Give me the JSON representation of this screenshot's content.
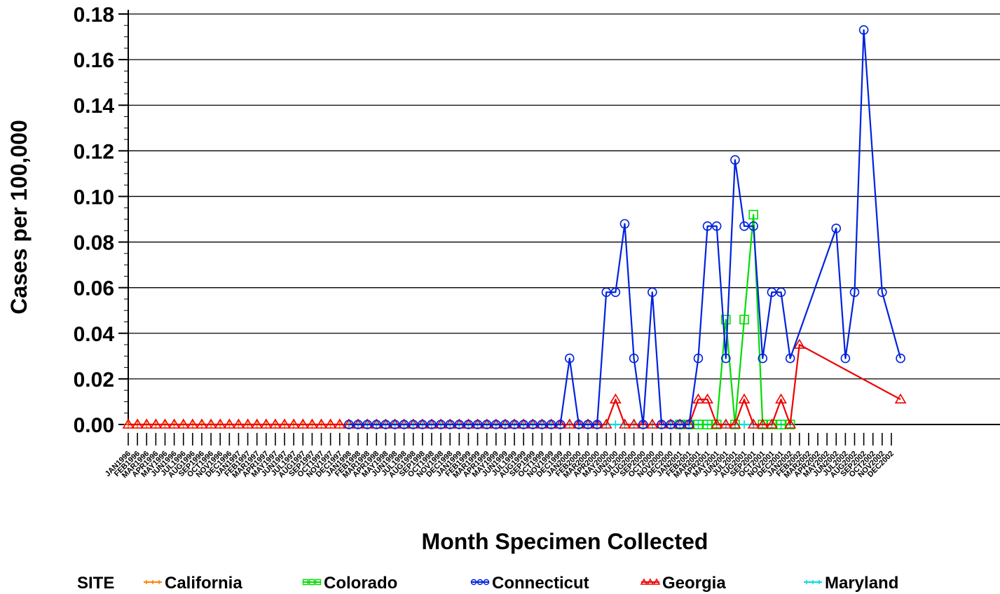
{
  "chart_data": {
    "type": "line",
    "xlabel": "Month Specimen Collected",
    "ylabel": "Cases per 100,000",
    "ylim": [
      0,
      0.18
    ],
    "yticks": [
      "0.00",
      "0.02",
      "0.04",
      "0.06",
      "0.08",
      "0.10",
      "0.12",
      "0.14",
      "0.16",
      "0.18"
    ],
    "grid": "horizontal",
    "legend_title": "SITE",
    "legend_position": "bottom",
    "x_categories": [
      "JAN1996",
      "FEB1996",
      "MAR1996",
      "APR1996",
      "MAY1996",
      "JUN1996",
      "JUL1996",
      "AUG1996",
      "SEP1996",
      "OCT1996",
      "NOV1996",
      "DEC1996",
      "JAN1997",
      "FEB1997",
      "MAR1997",
      "APR1997",
      "MAY1997",
      "JUN1997",
      "JUL1997",
      "AUG1997",
      "SEP1997",
      "OCT1997",
      "NOV1997",
      "DEC1997",
      "JAN1998",
      "FEB1998",
      "MAR1998",
      "APR1998",
      "MAY1998",
      "JUN1998",
      "JUL1998",
      "AUG1998",
      "SEP1998",
      "OCT1998",
      "NOV1998",
      "DEC1998",
      "JAN1999",
      "FEB1999",
      "MAR1999",
      "APR1999",
      "MAY1999",
      "JUN1999",
      "JUL1999",
      "AUG1999",
      "SEP1999",
      "OCT1999",
      "NOV1999",
      "DEC1999",
      "JAN2000",
      "FEB2000",
      "MAR2000",
      "APR2000",
      "MAY2000",
      "JUN2000",
      "JUL2000",
      "AUG2000",
      "SEP2000",
      "OCT2000",
      "NOV2000",
      "DEC2000",
      "JAN2001",
      "FEB2001",
      "MAR2001",
      "APR2001",
      "MAY2001",
      "JUN2001",
      "JUL2001",
      "AUG2001",
      "SEP2001",
      "OCT2001",
      "NOV2001",
      "DEC2001",
      "JAN2002",
      "FEB2002",
      "MAR2002",
      "APR2002",
      "MAY2002",
      "JUN2002",
      "JUL2002",
      "AUG2002",
      "SEP2002",
      "OCT2002",
      "NOV2002",
      "DEC2002"
    ],
    "series": [
      {
        "name": "California",
        "color": "#ff8000",
        "marker": "plus",
        "points": [
          [
            0,
            0
          ],
          [
            1,
            0
          ],
          [
            2,
            0
          ],
          [
            3,
            0
          ],
          [
            4,
            0
          ],
          [
            5,
            0
          ],
          [
            6,
            0
          ],
          [
            7,
            0
          ],
          [
            8,
            0
          ],
          [
            9,
            0
          ],
          [
            10,
            0
          ],
          [
            11,
            0
          ],
          [
            12,
            0
          ],
          [
            13,
            0
          ],
          [
            14,
            0
          ],
          [
            15,
            0
          ],
          [
            16,
            0
          ],
          [
            17,
            0
          ],
          [
            18,
            0
          ],
          [
            19,
            0
          ],
          [
            20,
            0
          ],
          [
            21,
            0
          ],
          [
            22,
            0
          ],
          [
            23,
            0
          ]
        ]
      },
      {
        "name": "Colorado",
        "color": "#00dd00",
        "marker": "square",
        "points": [
          [
            60,
            0
          ],
          [
            61,
            0
          ],
          [
            62,
            0
          ],
          [
            63,
            0
          ],
          [
            64,
            0
          ],
          [
            65,
            0.046
          ],
          [
            66,
            0
          ],
          [
            67,
            0.046
          ],
          [
            68,
            0.092
          ],
          [
            69,
            0
          ],
          [
            70,
            0
          ],
          [
            71,
            0
          ],
          [
            72,
            0
          ]
        ]
      },
      {
        "name": "Connecticut",
        "color": "#0022dd",
        "marker": "circle",
        "points": [
          [
            24,
            0
          ],
          [
            25,
            0
          ],
          [
            26,
            0
          ],
          [
            27,
            0
          ],
          [
            28,
            0
          ],
          [
            29,
            0
          ],
          [
            30,
            0
          ],
          [
            31,
            0
          ],
          [
            32,
            0
          ],
          [
            33,
            0
          ],
          [
            34,
            0
          ],
          [
            35,
            0
          ],
          [
            36,
            0
          ],
          [
            37,
            0
          ],
          [
            38,
            0
          ],
          [
            39,
            0
          ],
          [
            40,
            0
          ],
          [
            41,
            0
          ],
          [
            42,
            0
          ],
          [
            43,
            0
          ],
          [
            44,
            0
          ],
          [
            45,
            0
          ],
          [
            46,
            0
          ],
          [
            47,
            0
          ],
          [
            48,
            0.029
          ],
          [
            49,
            0
          ],
          [
            50,
            0
          ],
          [
            51,
            0
          ],
          [
            52,
            0.058
          ],
          [
            53,
            0.058
          ],
          [
            54,
            0.088
          ],
          [
            55,
            0.029
          ],
          [
            56,
            0
          ],
          [
            57,
            0.058
          ],
          [
            58,
            0
          ],
          [
            59,
            0
          ],
          [
            60,
            0
          ],
          [
            61,
            0
          ],
          [
            62,
            0.029
          ],
          [
            63,
            0.087
          ],
          [
            64,
            0.087
          ],
          [
            65,
            0.029
          ],
          [
            66,
            0.116
          ],
          [
            67,
            0.087
          ],
          [
            68,
            0.087
          ],
          [
            69,
            0.029
          ],
          [
            70,
            0.058
          ],
          [
            71,
            0.058
          ],
          [
            72,
            0.029
          ],
          [
            77,
            0.086
          ],
          [
            78,
            0.029
          ],
          [
            79,
            0.058
          ],
          [
            80,
            0.173
          ],
          [
            82,
            0.058
          ],
          [
            84,
            0.029
          ]
        ]
      },
      {
        "name": "Georgia",
        "color": "#ee0000",
        "marker": "triangle",
        "points": [
          [
            0,
            0
          ],
          [
            1,
            0
          ],
          [
            2,
            0
          ],
          [
            3,
            0
          ],
          [
            4,
            0
          ],
          [
            5,
            0
          ],
          [
            6,
            0
          ],
          [
            7,
            0
          ],
          [
            8,
            0
          ],
          [
            9,
            0
          ],
          [
            10,
            0
          ],
          [
            11,
            0
          ],
          [
            12,
            0
          ],
          [
            13,
            0
          ],
          [
            14,
            0
          ],
          [
            15,
            0
          ],
          [
            16,
            0
          ],
          [
            17,
            0
          ],
          [
            18,
            0
          ],
          [
            19,
            0
          ],
          [
            20,
            0
          ],
          [
            21,
            0
          ],
          [
            22,
            0
          ],
          [
            23,
            0
          ],
          [
            24,
            0
          ],
          [
            25,
            0
          ],
          [
            26,
            0
          ],
          [
            27,
            0
          ],
          [
            28,
            0
          ],
          [
            29,
            0
          ],
          [
            30,
            0
          ],
          [
            31,
            0
          ],
          [
            32,
            0
          ],
          [
            33,
            0
          ],
          [
            34,
            0
          ],
          [
            35,
            0
          ],
          [
            36,
            0
          ],
          [
            37,
            0
          ],
          [
            38,
            0
          ],
          [
            39,
            0
          ],
          [
            40,
            0
          ],
          [
            41,
            0
          ],
          [
            42,
            0
          ],
          [
            43,
            0
          ],
          [
            44,
            0
          ],
          [
            45,
            0
          ],
          [
            46,
            0
          ],
          [
            47,
            0
          ],
          [
            48,
            0
          ],
          [
            49,
            0
          ],
          [
            50,
            0
          ],
          [
            51,
            0
          ],
          [
            52,
            0
          ],
          [
            53,
            0.011
          ],
          [
            54,
            0
          ],
          [
            55,
            0
          ],
          [
            56,
            0
          ],
          [
            57,
            0
          ],
          [
            58,
            0
          ],
          [
            59,
            0
          ],
          [
            60,
            0
          ],
          [
            61,
            0
          ],
          [
            62,
            0.011
          ],
          [
            63,
            0.011
          ],
          [
            64,
            0
          ],
          [
            65,
            0
          ],
          [
            66,
            0
          ],
          [
            67,
            0.011
          ],
          [
            68,
            0
          ],
          [
            69,
            0
          ],
          [
            70,
            0
          ],
          [
            71,
            0.011
          ],
          [
            72,
            0
          ],
          [
            73,
            0.035
          ],
          [
            84,
            0.011
          ]
        ]
      },
      {
        "name": "Maryland",
        "color": "#00dddd",
        "marker": "plus",
        "points": [
          [
            24,
            0
          ],
          [
            25,
            0
          ],
          [
            26,
            0
          ],
          [
            27,
            0
          ],
          [
            28,
            0
          ],
          [
            29,
            0
          ],
          [
            30,
            0
          ],
          [
            31,
            0
          ],
          [
            32,
            0
          ],
          [
            33,
            0
          ],
          [
            34,
            0
          ],
          [
            35,
            0
          ],
          [
            36,
            0
          ],
          [
            37,
            0
          ],
          [
            38,
            0
          ],
          [
            39,
            0
          ],
          [
            40,
            0
          ],
          [
            41,
            0
          ],
          [
            42,
            0
          ],
          [
            43,
            0
          ],
          [
            44,
            0
          ],
          [
            45,
            0
          ],
          [
            46,
            0
          ],
          [
            47,
            0
          ],
          [
            48,
            0
          ],
          [
            49,
            0
          ],
          [
            50,
            0
          ],
          [
            51,
            0
          ],
          [
            52,
            0
          ],
          [
            53,
            0
          ],
          [
            54,
            0
          ],
          [
            55,
            0
          ],
          [
            56,
            0
          ],
          [
            57,
            0
          ],
          [
            58,
            0
          ],
          [
            59,
            0
          ],
          [
            60,
            0
          ],
          [
            61,
            0
          ],
          [
            62,
            0
          ],
          [
            63,
            0
          ],
          [
            64,
            0
          ],
          [
            65,
            0
          ],
          [
            66,
            0
          ],
          [
            67,
            0
          ],
          [
            68,
            0
          ],
          [
            69,
            0
          ],
          [
            70,
            0
          ],
          [
            71,
            0
          ],
          [
            72,
            0
          ]
        ]
      }
    ]
  }
}
